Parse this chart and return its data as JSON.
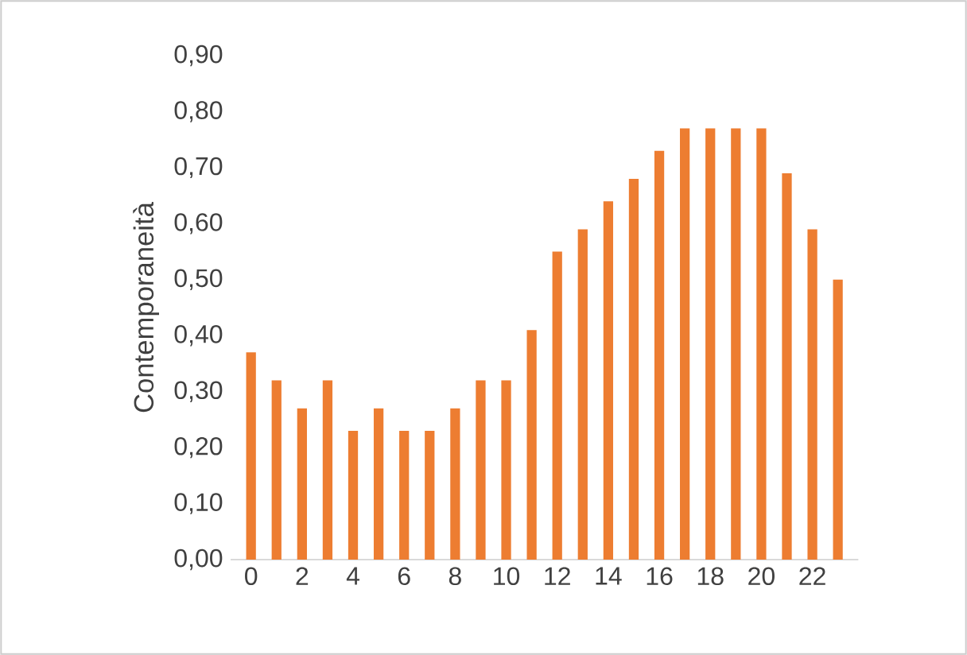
{
  "chart_data": {
    "type": "bar",
    "ylabel": "Contemporaneità",
    "categories": [
      "0",
      null,
      "2",
      null,
      "4",
      null,
      "6",
      null,
      "8",
      null,
      "10",
      null,
      "12",
      null,
      "14",
      null,
      "16",
      null,
      "18",
      null,
      "20",
      null,
      "22",
      null
    ],
    "values": [
      0.37,
      0.32,
      0.27,
      0.32,
      0.23,
      0.27,
      0.23,
      0.23,
      0.27,
      0.32,
      0.32,
      0.41,
      0.55,
      0.59,
      0.64,
      0.68,
      0.73,
      0.77,
      0.77,
      0.77,
      0.77,
      0.69,
      0.59,
      0.5
    ],
    "color": "#ed7d31",
    "ylim": [
      0,
      0.9
    ],
    "yticks": [
      {
        "value": 0,
        "label": "0,00"
      },
      {
        "value": 0.1,
        "label": "0,10"
      },
      {
        "value": 0.2,
        "label": "0,20"
      },
      {
        "value": 0.3,
        "label": "0,30"
      },
      {
        "value": 0.4,
        "label": "0,40"
      },
      {
        "value": 0.5,
        "label": "0,50"
      },
      {
        "value": 0.6,
        "label": "0,60"
      },
      {
        "value": 0.7,
        "label": "0,70"
      },
      {
        "value": 0.8,
        "label": "0,80"
      },
      {
        "value": 0.9,
        "label": "0,90"
      }
    ],
    "grid": false
  }
}
